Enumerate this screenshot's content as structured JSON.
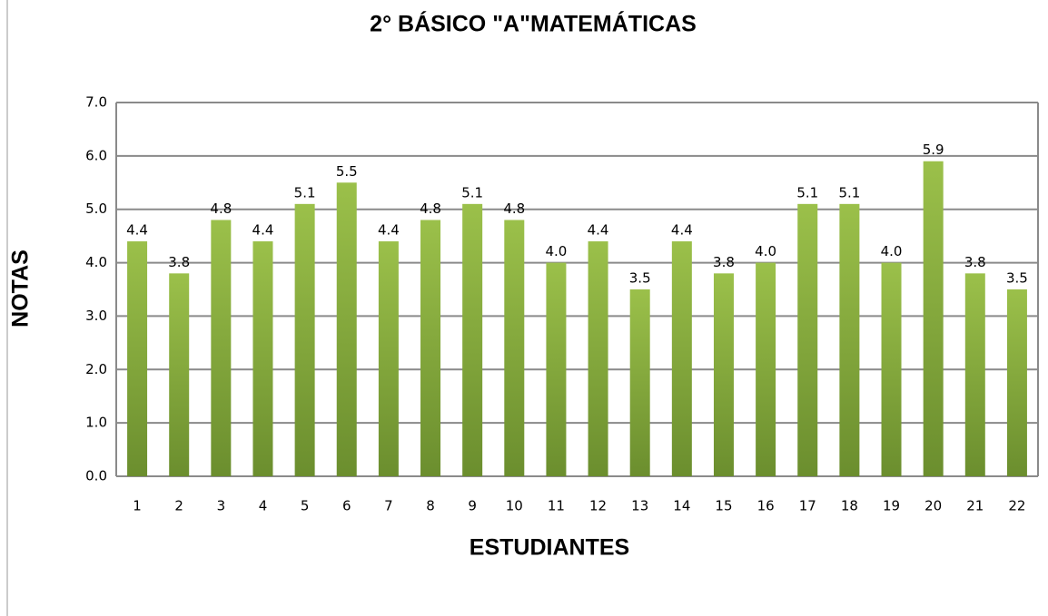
{
  "chart_data": {
    "type": "bar",
    "title": "2° BÁSICO \"A\"MATEMÁTICAS",
    "x_label": "ESTUDIANTES",
    "y_label": "NOTAS",
    "categories": [
      "1",
      "2",
      "3",
      "4",
      "5",
      "6",
      "7",
      "8",
      "9",
      "10",
      "11",
      "12",
      "13",
      "14",
      "15",
      "16",
      "17",
      "18",
      "19",
      "20",
      "21",
      "22"
    ],
    "values": [
      4.4,
      3.8,
      4.8,
      4.4,
      5.1,
      5.5,
      4.4,
      4.8,
      5.1,
      4.8,
      4.0,
      4.4,
      3.5,
      4.4,
      3.8,
      4.0,
      5.1,
      5.1,
      4.0,
      5.9,
      3.8,
      3.5
    ],
    "value_labels": [
      "4.4",
      "3.8",
      "4.8",
      "4.4",
      "5.1",
      "5.5",
      "4.4",
      "4.8",
      "5.1",
      "4.8",
      "4.0",
      "4.4",
      "3.5",
      "4.4",
      "3.8",
      "4.0",
      "5.1",
      "5.1",
      "4.0",
      "5.9",
      "3.8",
      "3.5"
    ],
    "color": "#6b8e2e",
    "ylim": [
      0,
      7
    ],
    "yticks": [
      {
        "value": 0,
        "label": "0.0"
      },
      {
        "value": 1,
        "label": "1.0"
      },
      {
        "value": 2,
        "label": "2.0"
      },
      {
        "value": 3,
        "label": "3.0"
      },
      {
        "value": 4,
        "label": "4.0"
      },
      {
        "value": 5,
        "label": "5.0"
      },
      {
        "value": 6,
        "label": "6.0"
      },
      {
        "value": 7,
        "label": "7.0"
      }
    ],
    "grid": true
  }
}
